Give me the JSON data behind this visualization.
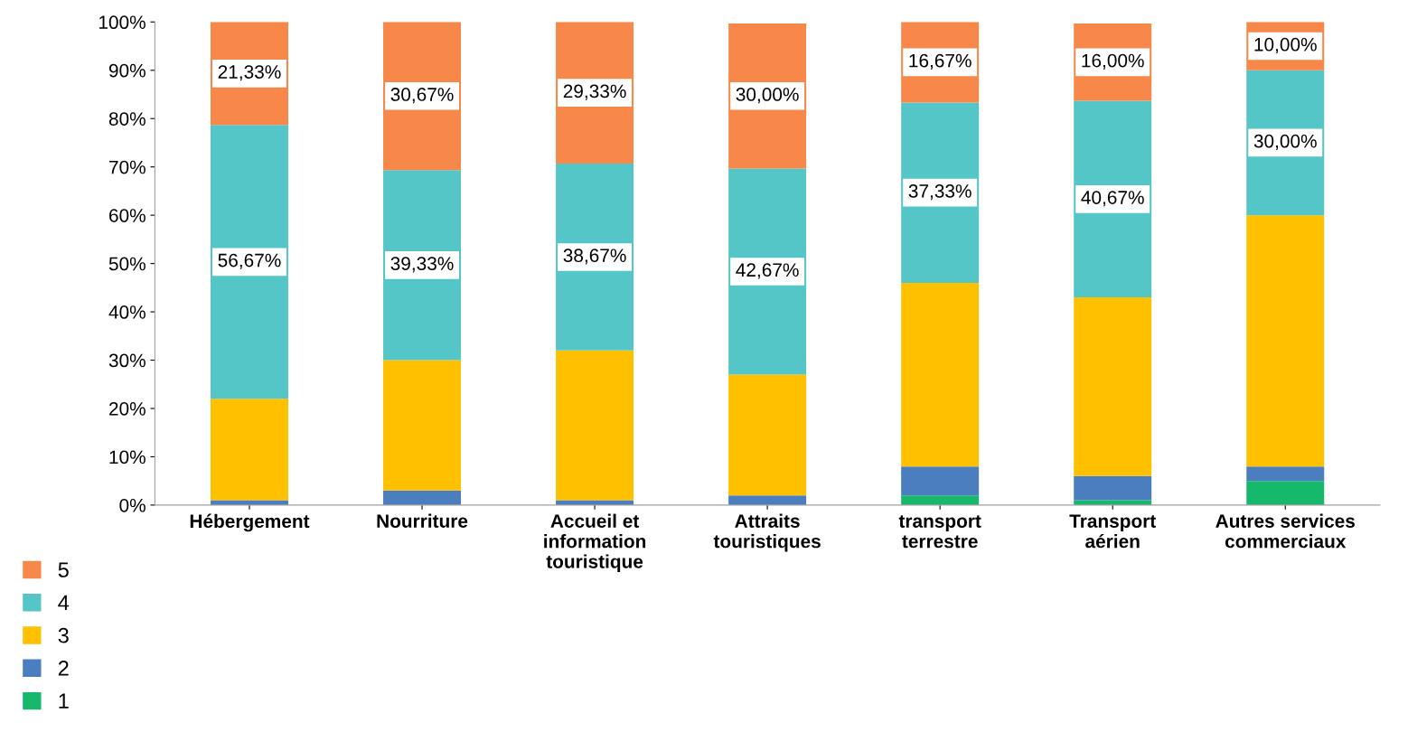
{
  "chart_data": {
    "type": "bar",
    "stacked": true,
    "categories": [
      "Hébergement",
      "Nourriture",
      "Accueil et\ninformation\ntouristique",
      "Attraits\ntouristiques",
      "transport\nterrestre",
      "Transport\naérien",
      "Autres services\ncommerciaux"
    ],
    "series": [
      {
        "name": "1",
        "color": "#16b96b",
        "values": [
          0,
          0,
          0,
          0,
          2,
          1,
          5
        ]
      },
      {
        "name": "2",
        "color": "#4a7ebf",
        "values": [
          1,
          3,
          1,
          2,
          6,
          5,
          3
        ]
      },
      {
        "name": "3",
        "color": "#ffc000",
        "values": [
          21,
          27,
          31,
          25,
          38,
          37,
          52
        ]
      },
      {
        "name": "4",
        "color": "#55c6c8",
        "values": [
          56.67,
          39.33,
          38.67,
          42.67,
          37.33,
          40.67,
          30
        ],
        "value_labels": [
          "56,67%",
          "39,33%",
          "38,67%",
          "42,67%",
          "37,33%",
          "40,67%",
          "30,00%"
        ]
      },
      {
        "name": "5",
        "color": "#f7884a",
        "values": [
          21.33,
          30.67,
          29.33,
          30,
          16.67,
          16,
          10
        ],
        "value_labels": [
          "21,33%",
          "30,67%",
          "29,33%",
          "30,00%",
          "16,67%",
          "16,00%",
          "10,00%"
        ]
      }
    ],
    "ylim": [
      0,
      100
    ],
    "yticks": [
      {
        "value": 0,
        "label": "0%"
      },
      {
        "value": 10,
        "label": "10%"
      },
      {
        "value": 20,
        "label": "20%"
      },
      {
        "value": 30,
        "label": "30%"
      },
      {
        "value": 40,
        "label": "40%"
      },
      {
        "value": 50,
        "label": "50%"
      },
      {
        "value": 60,
        "label": "60%"
      },
      {
        "value": 70,
        "label": "70%"
      },
      {
        "value": 80,
        "label": "80%"
      },
      {
        "value": 90,
        "label": "90%"
      },
      {
        "value": 100,
        "label": "100%"
      }
    ],
    "grid": false,
    "legend": "bottom left"
  }
}
